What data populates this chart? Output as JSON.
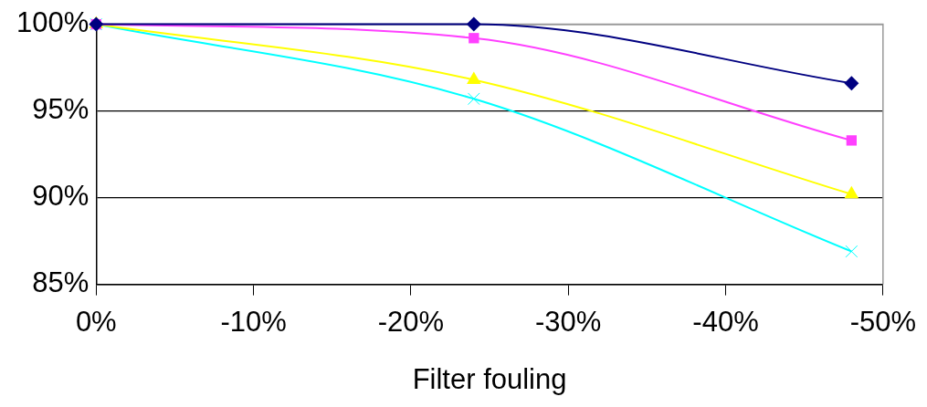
{
  "chart_data": {
    "type": "line",
    "xlabel": "Filter fouling",
    "x": [
      0,
      -24,
      -48
    ],
    "series": [
      {
        "color": "#000080",
        "marker": "diamond",
        "values": [
          100,
          100,
          96.6
        ]
      },
      {
        "color": "#ff40ff",
        "marker": "square",
        "values": [
          100,
          99.2,
          93.3
        ]
      },
      {
        "color": "#ffff00",
        "marker": "triangle",
        "values": [
          100,
          96.8,
          90.2
        ]
      },
      {
        "color": "#00ffff",
        "marker": "cross",
        "values": [
          100,
          95.7,
          86.9
        ]
      }
    ],
    "xlim": [
      0,
      -50
    ],
    "xticks": [
      {
        "value": 0,
        "label": "0%"
      },
      {
        "value": -10,
        "label": "-10%"
      },
      {
        "value": -20,
        "label": "-20%"
      },
      {
        "value": -30,
        "label": "-30%"
      },
      {
        "value": -40,
        "label": "-40%"
      },
      {
        "value": -50,
        "label": "-50%"
      }
    ],
    "ylim": [
      85,
      100
    ],
    "yticks": [
      {
        "value": 85,
        "label": "85%"
      },
      {
        "value": 90,
        "label": "90%"
      },
      {
        "value": 95,
        "label": "95%"
      },
      {
        "value": 100,
        "label": "100%"
      }
    ],
    "grid": "y",
    "legend": false
  }
}
